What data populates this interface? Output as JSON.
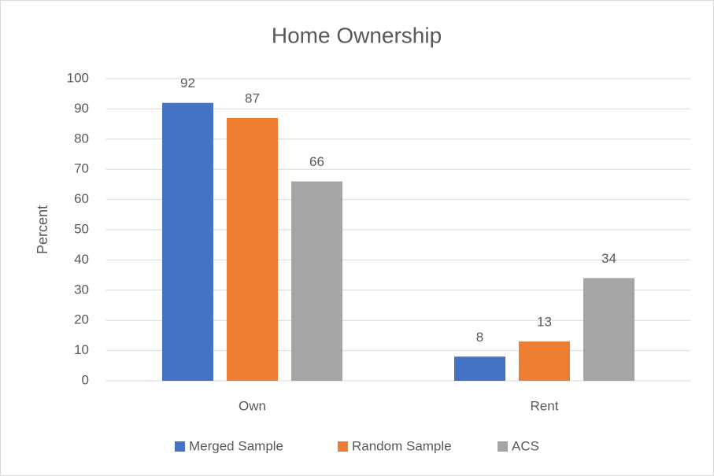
{
  "chart_data": {
    "type": "bar",
    "title": "Home Ownership",
    "ylabel": "Percent",
    "categories": [
      "Own",
      "Rent"
    ],
    "series": [
      {
        "name": "Merged Sample",
        "color": "#4472c4",
        "values": [
          92,
          8
        ]
      },
      {
        "name": "Random Sample",
        "color": "#ed7d31",
        "values": [
          87,
          13
        ]
      },
      {
        "name": "ACS",
        "color": "#a5a5a5",
        "values": [
          66,
          34
        ]
      }
    ],
    "ylim": [
      0,
      100
    ],
    "yticks": [
      0,
      10,
      20,
      30,
      40,
      50,
      60,
      70,
      80,
      90,
      100
    ],
    "grid": true,
    "legend": "bottom"
  }
}
